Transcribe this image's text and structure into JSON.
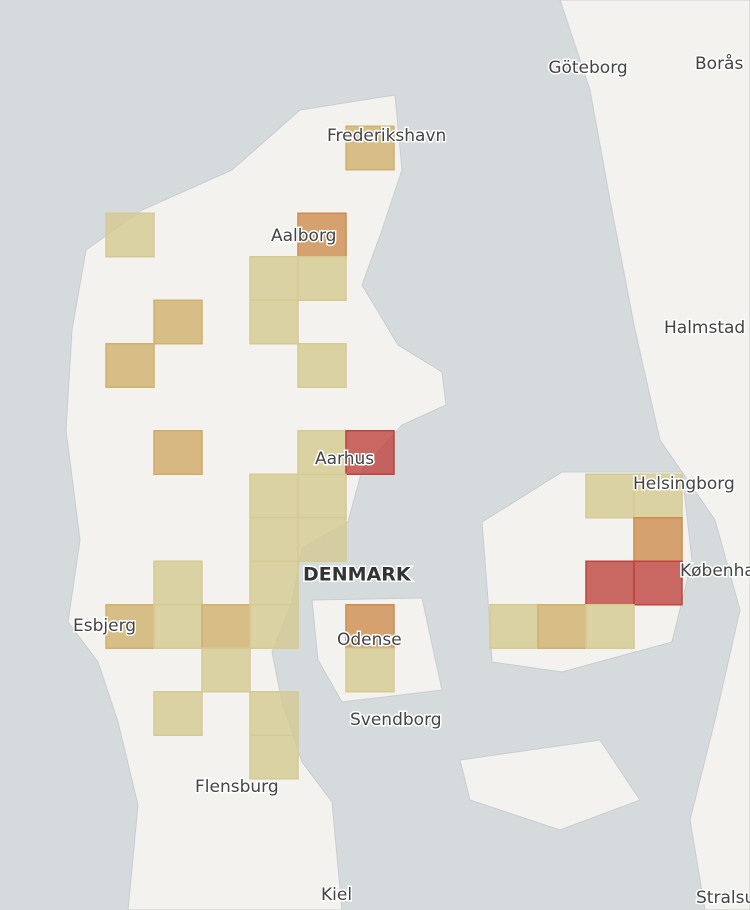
{
  "places": [
    {
      "name": "Göteborg"
    },
    {
      "name": "Borås"
    },
    {
      "name": "Frederikshavn"
    },
    {
      "name": "Aalborg"
    },
    {
      "name": "Halmstad"
    },
    {
      "name": "Aarhus"
    },
    {
      "name": "Helsingborg"
    },
    {
      "name": "København"
    },
    {
      "name": "Esbjerg"
    },
    {
      "name": "Odense"
    },
    {
      "name": "Svendborg"
    },
    {
      "name": "Flensburg"
    },
    {
      "name": "Kiel"
    },
    {
      "name": "Stralsund"
    }
  ],
  "country": "DENMARK",
  "cells": [
    {
      "lon": 9.95,
      "lat": 57.45,
      "color": "#f5d080"
    },
    {
      "lon": 8.3,
      "lat": 57.09,
      "color": "#fbeeab"
    },
    {
      "lon": 9.62,
      "lat": 57.09,
      "color": "#f1a55d"
    },
    {
      "lon": 9.29,
      "lat": 56.91,
      "color": "#fbeeab"
    },
    {
      "lon": 9.62,
      "lat": 56.91,
      "color": "#fbeeab"
    },
    {
      "lon": 9.29,
      "lat": 56.73,
      "color": "#fbeeab"
    },
    {
      "lon": 8.63,
      "lat": 56.73,
      "color": "#f5d080"
    },
    {
      "lon": 8.3,
      "lat": 56.55,
      "color": "#f5d080"
    },
    {
      "lon": 9.62,
      "lat": 56.55,
      "color": "#fbeeab"
    },
    {
      "lon": 8.63,
      "lat": 56.19,
      "color": "#f5c878"
    },
    {
      "lon": 9.62,
      "lat": 56.19,
      "color": "#fbeeab"
    },
    {
      "lon": 9.95,
      "lat": 56.19,
      "color": "#e0504a"
    },
    {
      "lon": 9.29,
      "lat": 56.01,
      "color": "#fbeeab"
    },
    {
      "lon": 9.62,
      "lat": 56.01,
      "color": "#fbeeab"
    },
    {
      "lon": 9.29,
      "lat": 55.83,
      "color": "#fbeeab"
    },
    {
      "lon": 9.62,
      "lat": 55.83,
      "color": "#fbeeab"
    },
    {
      "lon": 8.63,
      "lat": 55.65,
      "color": "#fbeeab"
    },
    {
      "lon": 9.29,
      "lat": 55.65,
      "color": "#fbeeab"
    },
    {
      "lon": 8.3,
      "lat": 55.47,
      "color": "#f5d080"
    },
    {
      "lon": 8.63,
      "lat": 55.47,
      "color": "#fbeeab"
    },
    {
      "lon": 8.96,
      "lat": 55.47,
      "color": "#f5d080"
    },
    {
      "lon": 9.29,
      "lat": 55.47,
      "color": "#fbeeab"
    },
    {
      "lon": 9.95,
      "lat": 55.47,
      "color": "#f1a55d"
    },
    {
      "lon": 8.96,
      "lat": 55.29,
      "color": "#fbeeab"
    },
    {
      "lon": 9.95,
      "lat": 55.29,
      "color": "#fbeeab"
    },
    {
      "lon": 8.63,
      "lat": 55.11,
      "color": "#fbeeab"
    },
    {
      "lon": 9.29,
      "lat": 55.11,
      "color": "#fbeeab"
    },
    {
      "lon": 9.29,
      "lat": 54.93,
      "color": "#fbeeab"
    },
    {
      "lon": 11.6,
      "lat": 56.01,
      "color": "#fbeeab"
    },
    {
      "lon": 11.93,
      "lat": 56.01,
      "color": "#fbeeab"
    },
    {
      "lon": 11.93,
      "lat": 55.83,
      "color": "#f1a55d"
    },
    {
      "lon": 11.6,
      "lat": 55.65,
      "color": "#e0504a"
    },
    {
      "lon": 11.93,
      "lat": 55.65,
      "color": "#e0504a"
    },
    {
      "lon": 10.94,
      "lat": 55.47,
      "color": "#fbeeab"
    },
    {
      "lon": 11.27,
      "lat": 55.47,
      "color": "#f5d080"
    },
    {
      "lon": 11.6,
      "lat": 55.47,
      "color": "#fbeeab"
    }
  ]
}
